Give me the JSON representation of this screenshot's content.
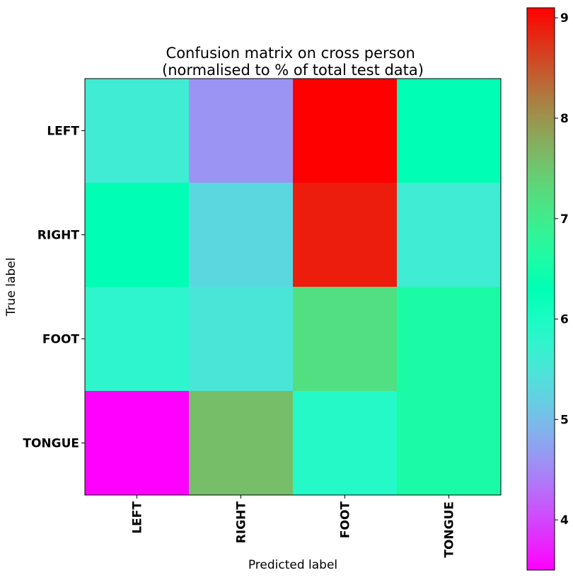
{
  "chart_data": {
    "type": "heatmap",
    "title": "Confusion matrix on cross person\n(normalised to % of total test data)",
    "title_lines": [
      "Confusion matrix on cross person",
      "(normalised to % of total test data)"
    ],
    "xlabel": "Predicted label",
    "ylabel": "True label",
    "x_categories": [
      "LEFT",
      "RIGHT",
      "FOOT",
      "TONGUE"
    ],
    "y_categories": [
      "LEFT",
      "RIGHT",
      "FOOT",
      "TONGUE"
    ],
    "values": [
      [
        5.6,
        4.6,
        9.1,
        6.3
      ],
      [
        6.3,
        5.3,
        8.9,
        5.6
      ],
      [
        5.8,
        5.5,
        7.2,
        6.6
      ],
      [
        3.5,
        7.6,
        5.9,
        6.6
      ]
    ],
    "colormap": "rainbow",
    "colorbar": {
      "range": [
        3.5,
        9.1
      ],
      "ticks": [
        4,
        5,
        6,
        7,
        8,
        9
      ],
      "tick_labels": [
        "4",
        "5",
        "6",
        "7",
        "8",
        "9"
      ]
    },
    "grid": false,
    "legend": "colorbar-right"
  }
}
